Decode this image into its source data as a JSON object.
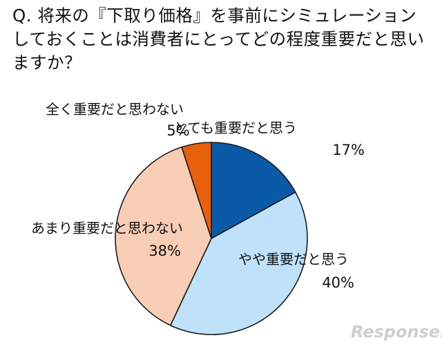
{
  "title": "Q. 将来の『下取り価格』を事前にシミュレーションしておくことは消費者にとってどの程度重要だと思いますか？",
  "watermark": "Response.",
  "chart_data": {
    "type": "pie",
    "title": "Q. 将来の『下取り価格』を事前にシミュレーションしておくことは消費者にとってどの程度重要だと思いますか？",
    "unit": "%",
    "start_angle_deg": 0,
    "direction": "clockwise",
    "slices": [
      {
        "label": "とても重要だと思う",
        "value": 17,
        "display": "17%",
        "color": "#0b5aa8"
      },
      {
        "label": "やや重要だと思う",
        "value": 40,
        "display": "40%",
        "color": "#bfe2fa"
      },
      {
        "label": "あまり重要だと思わない",
        "value": 38,
        "display": "38%",
        "color": "#f8cdb6"
      },
      {
        "label": "全く重要だと思わない",
        "value": 5,
        "display": "5%",
        "color": "#e85f0d"
      }
    ]
  }
}
